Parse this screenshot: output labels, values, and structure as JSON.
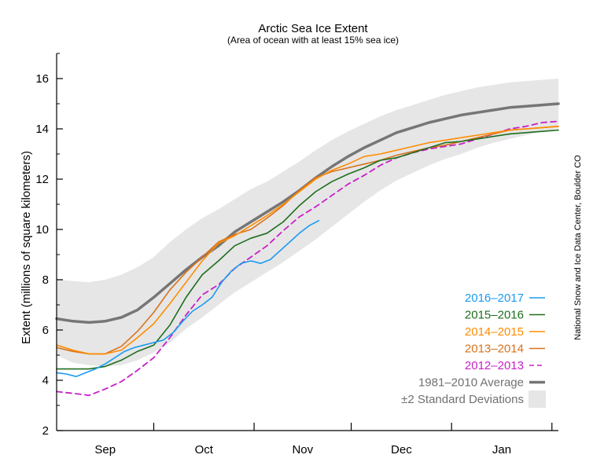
{
  "chart_data": {
    "type": "line",
    "title": "Arctic Sea Ice Extent",
    "subtitle": "(Area of ocean with at least 15% sea ice)",
    "ylabel": "Extent (millions of square kilometers)",
    "credit": "National Snow and Ice Data Center, Boulder CO",
    "ylim": [
      2,
      17
    ],
    "yticks": [
      "2",
      "4",
      "6",
      "8",
      "10",
      "12",
      "14",
      "16"
    ],
    "ytick_values": [
      2,
      4,
      6,
      8,
      10,
      12,
      14,
      16
    ],
    "months": [
      "Sep",
      "Oct",
      "Nov",
      "Dec",
      "Jan"
    ],
    "month_boundaries": [
      "Sep 1",
      "Oct 1",
      "Nov 1",
      "Dec 1",
      "Jan 1",
      "Feb 1"
    ],
    "x_unit": "day of season starting Sep 1",
    "legend_position": "bottom-right",
    "band": {
      "name": "±2 Standard Deviations",
      "color": "#e6e6e6",
      "x": [
        0,
        5,
        10,
        15,
        20,
        25,
        30,
        35,
        40,
        45,
        50,
        55,
        60,
        65,
        70,
        75,
        80,
        85,
        90,
        95,
        100,
        105,
        110,
        115,
        120,
        125,
        130,
        135,
        140,
        145,
        150,
        155
      ],
      "lower": [
        5.0,
        4.7,
        4.6,
        4.55,
        4.6,
        4.8,
        5.1,
        5.5,
        6.05,
        6.5,
        7.0,
        7.5,
        7.9,
        8.3,
        8.7,
        9.15,
        9.6,
        10.1,
        10.6,
        11.1,
        11.55,
        11.95,
        12.25,
        12.55,
        12.8,
        13.0,
        13.25,
        13.45,
        13.6,
        13.75,
        13.9,
        14.0
      ],
      "upper": [
        8.0,
        7.95,
        7.9,
        8.0,
        8.2,
        8.5,
        8.9,
        9.5,
        10.0,
        10.45,
        10.8,
        11.2,
        11.6,
        11.9,
        12.3,
        12.7,
        13.15,
        13.55,
        13.9,
        14.2,
        14.5,
        14.75,
        14.95,
        15.15,
        15.35,
        15.5,
        15.65,
        15.75,
        15.85,
        15.9,
        15.95,
        16.0
      ]
    },
    "series": [
      {
        "name": "1981–2010 Average",
        "color": "#767676",
        "dash": "solid",
        "width": 3.5,
        "x": [
          0,
          5,
          10,
          15,
          20,
          25,
          30,
          35,
          40,
          45,
          50,
          55,
          60,
          65,
          70,
          75,
          80,
          85,
          90,
          95,
          100,
          105,
          110,
          115,
          120,
          125,
          130,
          135,
          140,
          145,
          150,
          155
        ],
        "y": [
          6.45,
          6.35,
          6.3,
          6.35,
          6.5,
          6.8,
          7.3,
          7.85,
          8.4,
          8.9,
          9.35,
          9.9,
          10.3,
          10.7,
          11.1,
          11.55,
          12.05,
          12.5,
          12.9,
          13.25,
          13.55,
          13.85,
          14.05,
          14.25,
          14.4,
          14.55,
          14.65,
          14.75,
          14.85,
          14.9,
          14.95,
          15.0
        ]
      },
      {
        "name": "2012–2013",
        "color": "#c820c8",
        "dash": "dashed",
        "width": 1.8,
        "x": [
          0,
          5,
          10,
          15,
          20,
          25,
          30,
          35,
          40,
          45,
          50,
          55,
          60,
          65,
          70,
          75,
          80,
          85,
          90,
          95,
          100,
          105,
          110,
          115,
          120,
          125,
          130,
          135,
          140,
          145,
          150,
          155
        ],
        "y": [
          3.55,
          3.48,
          3.4,
          3.65,
          3.95,
          4.4,
          4.9,
          5.7,
          6.6,
          7.4,
          7.8,
          8.45,
          8.9,
          9.35,
          9.95,
          10.5,
          10.9,
          11.35,
          11.8,
          12.15,
          12.55,
          12.85,
          13.05,
          13.2,
          13.3,
          13.4,
          13.6,
          13.8,
          14.0,
          14.1,
          14.25,
          14.3
        ]
      },
      {
        "name": "2013–2014",
        "color": "#d9721a",
        "dash": "solid",
        "width": 1.6,
        "x": [
          0,
          5,
          10,
          15,
          20,
          25,
          30,
          35,
          40,
          45,
          50,
          55,
          60,
          65,
          70,
          75,
          80,
          85,
          90,
          95,
          100,
          105,
          110,
          115,
          120,
          125,
          130,
          135,
          140,
          145,
          150,
          155
        ],
        "y": [
          5.3,
          5.15,
          5.05,
          5.05,
          5.35,
          5.95,
          6.7,
          7.6,
          8.3,
          8.9,
          9.5,
          9.8,
          10.0,
          10.45,
          10.95,
          11.55,
          12.05,
          12.3,
          12.45,
          12.6,
          12.75,
          12.95,
          13.1,
          13.25,
          13.35,
          13.5,
          13.65,
          13.8,
          13.95,
          14.0,
          14.05,
          14.1
        ]
      },
      {
        "name": "2014–2015",
        "color": "#ff8c00",
        "dash": "solid",
        "width": 1.6,
        "x": [
          0,
          5,
          10,
          15,
          20,
          25,
          30,
          35,
          40,
          45,
          50,
          55,
          60,
          65,
          70,
          75,
          80,
          85,
          90,
          95,
          100,
          105,
          110,
          115,
          120,
          125,
          130,
          135,
          140,
          145,
          150,
          155
        ],
        "y": [
          5.4,
          5.2,
          5.05,
          5.05,
          5.2,
          5.7,
          6.25,
          7.05,
          7.9,
          8.75,
          9.45,
          9.75,
          10.15,
          10.55,
          11.0,
          11.5,
          12.0,
          12.35,
          12.6,
          12.9,
          13.0,
          13.15,
          13.3,
          13.45,
          13.55,
          13.65,
          13.75,
          13.85,
          13.95,
          14.0,
          14.05,
          14.1
        ]
      },
      {
        "name": "2015–2016",
        "color": "#1e6e1e",
        "dash": "solid",
        "width": 1.6,
        "x": [
          0,
          5,
          10,
          15,
          20,
          25,
          30,
          35,
          40,
          45,
          50,
          55,
          60,
          65,
          70,
          75,
          80,
          85,
          90,
          95,
          100,
          105,
          110,
          115,
          120,
          125,
          130,
          135,
          140,
          145,
          150,
          155
        ],
        "y": [
          4.45,
          4.45,
          4.45,
          4.55,
          4.8,
          5.15,
          5.4,
          6.2,
          7.3,
          8.2,
          8.75,
          9.35,
          9.65,
          9.85,
          10.3,
          10.95,
          11.5,
          11.9,
          12.2,
          12.45,
          12.75,
          12.85,
          13.05,
          13.25,
          13.45,
          13.5,
          13.6,
          13.7,
          13.8,
          13.85,
          13.9,
          13.95
        ]
      },
      {
        "name": "2016–2017",
        "color": "#1a9bf0",
        "dash": "solid",
        "width": 1.6,
        "x": [
          0,
          3,
          6,
          9,
          12,
          15,
          18,
          21,
          24,
          27,
          30,
          33,
          36,
          39,
          42,
          45,
          48,
          51,
          54,
          57,
          60,
          63,
          66,
          69,
          72,
          75,
          78,
          81
        ],
        "y": [
          4.3,
          4.25,
          4.15,
          4.3,
          4.45,
          4.65,
          4.9,
          5.15,
          5.3,
          5.4,
          5.5,
          5.6,
          5.9,
          6.35,
          6.75,
          7.0,
          7.3,
          7.9,
          8.35,
          8.65,
          8.75,
          8.65,
          8.8,
          9.15,
          9.5,
          9.85,
          10.15,
          10.35
        ]
      }
    ]
  }
}
